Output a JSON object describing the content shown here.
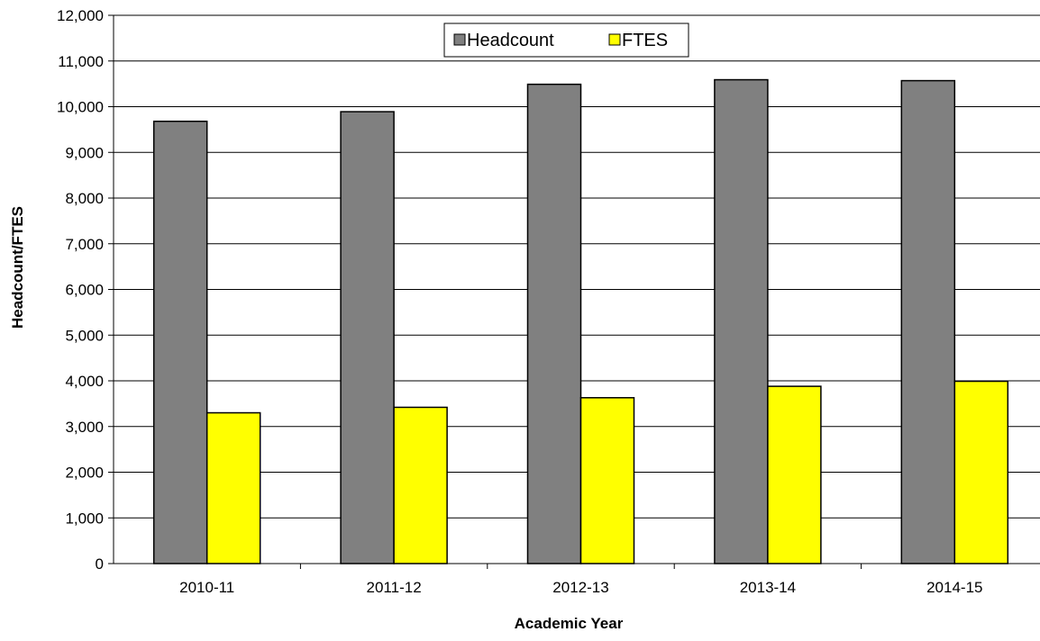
{
  "chart_data": {
    "type": "bar",
    "title": "",
    "xlabel": "Academic Year",
    "ylabel": "Headcount/FTES",
    "categories": [
      "2010-11",
      "2011-12",
      "2012-13",
      "2013-14",
      "2014-15"
    ],
    "series": [
      {
        "name": "Headcount",
        "values": [
          9680,
          9890,
          10490,
          10590,
          10570
        ],
        "color": "#808080"
      },
      {
        "name": "FTES",
        "values": [
          3300,
          3420,
          3630,
          3880,
          3990
        ],
        "color": "#ffff00"
      }
    ],
    "ylim": [
      0,
      12000
    ],
    "yticks": [
      "0",
      "1,000",
      "2,000",
      "3,000",
      "4,000",
      "5,000",
      "6,000",
      "7,000",
      "8,000",
      "9,000",
      "10,000",
      "11,000",
      "12,000"
    ],
    "grid": true,
    "legend": {
      "position": "top-center",
      "orientation": "horizontal"
    }
  }
}
